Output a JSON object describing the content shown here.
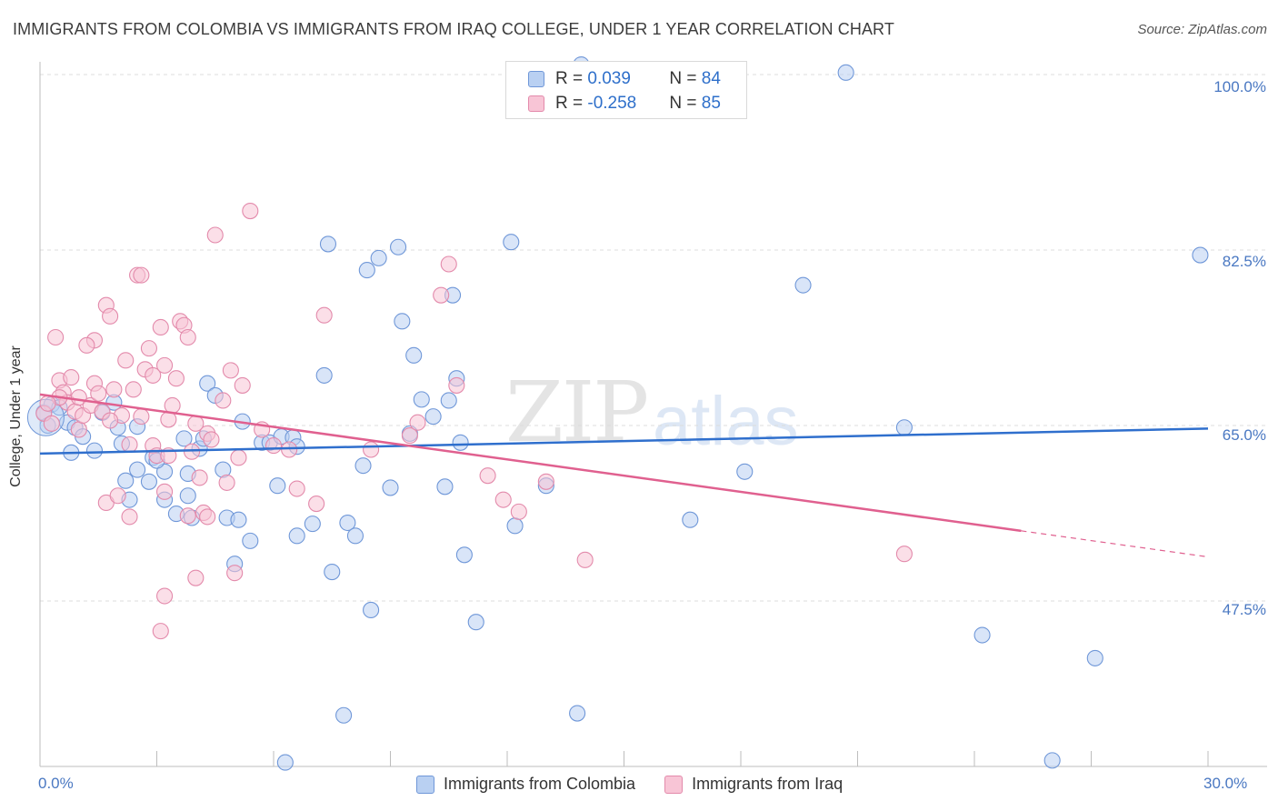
{
  "title": "IMMIGRANTS FROM COLOMBIA VS IMMIGRANTS FROM IRAQ COLLEGE, UNDER 1 YEAR CORRELATION CHART",
  "source": "Source: ZipAtlas.com",
  "watermark": {
    "zip": "ZIP",
    "atlas": "atlas"
  },
  "legend_top": {
    "rows": [
      {
        "r_label": "R = ",
        "r_value": "0.039",
        "n_label": "N = ",
        "n_value": "84"
      },
      {
        "r_label": "R = ",
        "r_value": "-0.258",
        "n_label": "N = ",
        "n_value": "85"
      }
    ]
  },
  "legend_bottom": {
    "series1": "Immigrants from Colombia",
    "series2": "Immigrants from Iraq"
  },
  "colors": {
    "blue": "#6f97d8",
    "blue_fill": "#b9d0f2",
    "blue_line": "#2f6fcd",
    "pink": "#e38aab",
    "pink_fill": "#f8c5d6",
    "pink_line": "#e0608f"
  },
  "chart_data": {
    "type": "scatter",
    "title": "IMMIGRANTS FROM COLOMBIA VS IMMIGRANTS FROM IRAQ COLLEGE, UNDER 1 YEAR CORRELATION CHART",
    "xlabel": "",
    "ylabel": "College, Under 1 year",
    "xlim": [
      0,
      30
    ],
    "ylim": [
      31,
      102
    ],
    "x_tick_labels": [
      "0.0%",
      "30.0%"
    ],
    "y_ticks": [
      100,
      82.5,
      65,
      47.5
    ],
    "y_tick_labels": [
      "100.0%",
      "82.5%",
      "65.0%",
      "47.5%"
    ],
    "series": [
      {
        "name": "Immigrants from Colombia",
        "trend": {
          "x": [
            0,
            30
          ],
          "y": [
            62.2,
            64.7
          ]
        },
        "points": [
          [
            0.1,
            66.3
          ],
          [
            0.3,
            67.1
          ],
          [
            0.5,
            66.8
          ],
          [
            0.7,
            65.3
          ],
          [
            0.9,
            64.8
          ],
          [
            1.1,
            63.9
          ],
          [
            1.4,
            62.5
          ],
          [
            1.9,
            67.3
          ],
          [
            2.0,
            64.8
          ],
          [
            2.2,
            59.5
          ],
          [
            2.1,
            63.2
          ],
          [
            2.3,
            57.6
          ],
          [
            2.5,
            60.6
          ],
          [
            2.5,
            64.9
          ],
          [
            2.8,
            59.4
          ],
          [
            2.9,
            61.8
          ],
          [
            3.2,
            60.4
          ],
          [
            3.2,
            57.6
          ],
          [
            3.5,
            56.2
          ],
          [
            3.7,
            63.7
          ],
          [
            3.8,
            60.2
          ],
          [
            3.8,
            58.0
          ],
          [
            3.9,
            55.8
          ],
          [
            4.1,
            62.7
          ],
          [
            4.3,
            69.2
          ],
          [
            4.5,
            68.0
          ],
          [
            4.7,
            60.6
          ],
          [
            4.8,
            55.8
          ],
          [
            5.1,
            55.6
          ],
          [
            5.2,
            65.4
          ],
          [
            5.4,
            53.5
          ],
          [
            5.0,
            51.2
          ],
          [
            5.7,
            63.3
          ],
          [
            5.9,
            63.3
          ],
          [
            6.1,
            59.0
          ],
          [
            6.2,
            63.9
          ],
          [
            6.5,
            63.8
          ],
          [
            6.6,
            54.0
          ],
          [
            6.3,
            31.4
          ],
          [
            7.0,
            55.2
          ],
          [
            7.3,
            70.0
          ],
          [
            7.4,
            83.1
          ],
          [
            7.5,
            50.4
          ],
          [
            7.8,
            36.1
          ],
          [
            7.9,
            55.3
          ],
          [
            8.1,
            54.0
          ],
          [
            8.3,
            61.0
          ],
          [
            8.4,
            80.5
          ],
          [
            8.7,
            81.7
          ],
          [
            8.5,
            46.6
          ],
          [
            9.0,
            58.8
          ],
          [
            9.2,
            82.8
          ],
          [
            9.3,
            75.4
          ],
          [
            9.5,
            64.2
          ],
          [
            9.6,
            72.0
          ],
          [
            9.8,
            67.6
          ],
          [
            10.1,
            65.9
          ],
          [
            10.4,
            58.9
          ],
          [
            10.6,
            78.0
          ],
          [
            10.7,
            69.7
          ],
          [
            10.8,
            63.3
          ],
          [
            10.9,
            52.1
          ],
          [
            11.2,
            45.4
          ],
          [
            12.1,
            83.3
          ],
          [
            12.2,
            55.0
          ],
          [
            13.0,
            59.0
          ],
          [
            13.8,
            36.3
          ],
          [
            13.9,
            101.0
          ],
          [
            16.7,
            55.6
          ],
          [
            18.1,
            60.4
          ],
          [
            19.6,
            79.0
          ],
          [
            20.7,
            100.2
          ],
          [
            22.2,
            64.8
          ],
          [
            24.2,
            44.1
          ],
          [
            26.0,
            31.6
          ],
          [
            27.1,
            41.8
          ],
          [
            29.8,
            82.0
          ],
          [
            0.2,
            65.0
          ],
          [
            0.8,
            62.3
          ],
          [
            1.6,
            66.3
          ],
          [
            3.0,
            61.5
          ],
          [
            4.2,
            63.7
          ],
          [
            6.6,
            62.9
          ],
          [
            10.5,
            67.5
          ]
        ]
      },
      {
        "name": "Immigrants from Iraq",
        "trend": {
          "x": [
            0,
            25.2
          ],
          "y": [
            68.1,
            54.5
          ]
        },
        "trend_dashed": {
          "x": [
            25.2,
            30
          ],
          "y": [
            54.5,
            51.9
          ]
        },
        "points": [
          [
            0.1,
            66.2
          ],
          [
            0.3,
            65.2
          ],
          [
            0.4,
            73.8
          ],
          [
            0.5,
            69.5
          ],
          [
            0.6,
            68.3
          ],
          [
            0.7,
            67.3
          ],
          [
            0.9,
            66.4
          ],
          [
            1.0,
            64.6
          ],
          [
            1.0,
            67.8
          ],
          [
            1.1,
            66.0
          ],
          [
            1.3,
            67.0
          ],
          [
            1.4,
            69.2
          ],
          [
            1.4,
            73.5
          ],
          [
            1.5,
            68.2
          ],
          [
            1.6,
            66.4
          ],
          [
            1.7,
            57.3
          ],
          [
            1.7,
            77.0
          ],
          [
            1.8,
            75.9
          ],
          [
            1.9,
            68.6
          ],
          [
            2.0,
            58.0
          ],
          [
            2.1,
            66.0
          ],
          [
            2.2,
            71.5
          ],
          [
            2.3,
            63.1
          ],
          [
            2.4,
            68.6
          ],
          [
            2.5,
            80.0
          ],
          [
            2.6,
            80.0
          ],
          [
            2.7,
            70.6
          ],
          [
            2.8,
            72.7
          ],
          [
            2.9,
            70.0
          ],
          [
            2.9,
            63.0
          ],
          [
            3.0,
            62.0
          ],
          [
            3.1,
            74.8
          ],
          [
            3.2,
            71.0
          ],
          [
            3.2,
            58.4
          ],
          [
            3.3,
            65.6
          ],
          [
            3.4,
            67.0
          ],
          [
            3.5,
            69.7
          ],
          [
            3.6,
            75.4
          ],
          [
            3.7,
            75.0
          ],
          [
            3.8,
            73.8
          ],
          [
            3.8,
            56.0
          ],
          [
            3.9,
            62.4
          ],
          [
            4.0,
            65.2
          ],
          [
            4.1,
            59.8
          ],
          [
            4.2,
            56.3
          ],
          [
            4.3,
            64.2
          ],
          [
            4.3,
            55.9
          ],
          [
            4.5,
            84.0
          ],
          [
            4.7,
            67.5
          ],
          [
            4.8,
            59.3
          ],
          [
            4.9,
            70.5
          ],
          [
            5.0,
            50.3
          ],
          [
            5.2,
            69.0
          ],
          [
            5.4,
            86.4
          ],
          [
            5.7,
            64.6
          ],
          [
            6.0,
            63.0
          ],
          [
            6.6,
            58.7
          ],
          [
            7.1,
            57.2
          ],
          [
            7.3,
            76.0
          ],
          [
            8.5,
            62.6
          ],
          [
            9.5,
            64.0
          ],
          [
            9.7,
            65.3
          ],
          [
            10.3,
            78.0
          ],
          [
            10.5,
            81.1
          ],
          [
            10.7,
            69.0
          ],
          [
            11.5,
            60.0
          ],
          [
            11.9,
            57.6
          ],
          [
            12.3,
            56.4
          ],
          [
            13.0,
            59.4
          ],
          [
            14.0,
            51.6
          ],
          [
            22.2,
            52.2
          ],
          [
            3.2,
            48.0
          ],
          [
            3.1,
            44.5
          ],
          [
            4.0,
            49.8
          ],
          [
            2.3,
            55.9
          ],
          [
            1.2,
            73.0
          ],
          [
            0.5,
            67.8
          ],
          [
            0.8,
            69.8
          ],
          [
            1.8,
            65.5
          ],
          [
            2.6,
            65.9
          ],
          [
            3.3,
            62.0
          ],
          [
            4.4,
            63.6
          ],
          [
            5.1,
            61.8
          ],
          [
            6.4,
            62.6
          ],
          [
            0.2,
            67.2
          ]
        ]
      }
    ]
  }
}
